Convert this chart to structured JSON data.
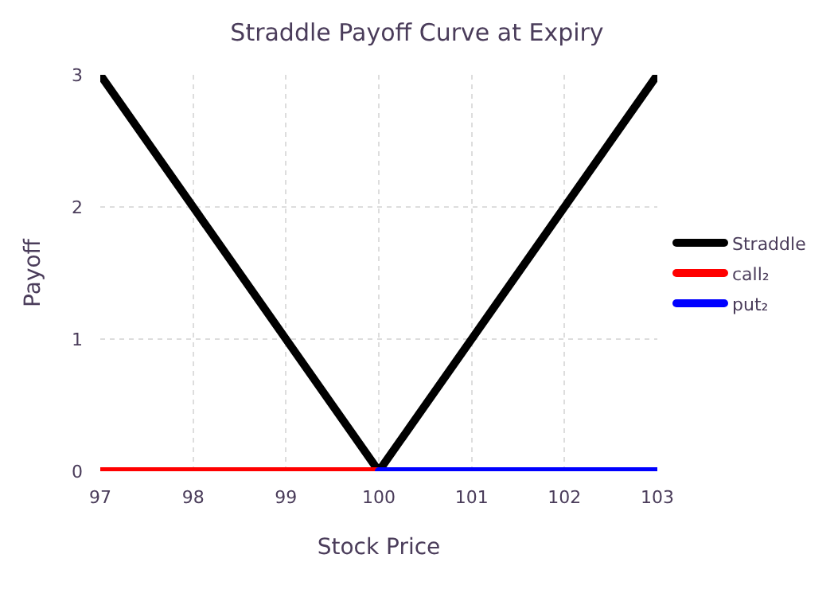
{
  "chart_data": {
    "type": "line",
    "title": "Straddle Payoff Curve at Expiry",
    "xlabel": "Stock Price",
    "ylabel": "Payoff",
    "series": [
      {
        "name": "Straddle",
        "color": "#000000",
        "x": [
          97,
          100,
          103
        ],
        "values": [
          3,
          0,
          3
        ]
      },
      {
        "name": "call₂",
        "color": "#ff0000",
        "x": [
          97,
          100
        ],
        "values": [
          0,
          0
        ]
      },
      {
        "name": "put₂",
        "color": "#0000ff",
        "x": [
          100,
          103
        ],
        "values": [
          0,
          0
        ]
      }
    ],
    "xlim": [
      97,
      103
    ],
    "xticks": [
      97,
      98,
      99,
      100,
      101,
      102,
      103
    ],
    "ylim": [
      0,
      3
    ],
    "yticks": [
      0,
      1,
      2,
      3
    ],
    "grid": true,
    "legend": "right",
    "marker": "none",
    "line_style": "solid"
  }
}
